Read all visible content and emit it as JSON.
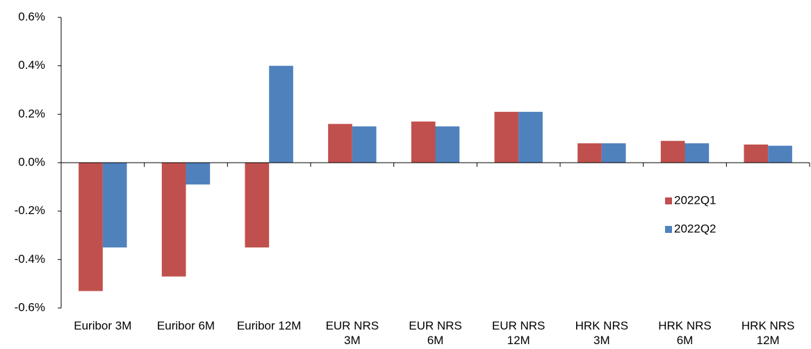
{
  "chart_data": {
    "type": "bar",
    "categories": [
      "Euribor 3M",
      "Euribor 6M",
      "Euribor 12M",
      "EUR NRS\n3M",
      "EUR NRS\n6M",
      "EUR NRS\n12M",
      "HRK NRS\n3M",
      "HRK NRS\n6M",
      "HRK NRS\n12M"
    ],
    "series": [
      {
        "name": "2022Q1",
        "color": "#c0504d",
        "values": [
          -0.53,
          -0.47,
          -0.35,
          0.16,
          0.17,
          0.21,
          0.08,
          0.09,
          0.075
        ]
      },
      {
        "name": "2022Q2",
        "color": "#4f81bd",
        "values": [
          -0.35,
          -0.09,
          0.4,
          0.15,
          0.15,
          0.21,
          0.08,
          0.08,
          0.07
        ]
      }
    ],
    "ylim": [
      -0.6,
      0.6
    ],
    "yticks": [
      {
        "value": -0.6,
        "label": "-0.6%"
      },
      {
        "value": -0.4,
        "label": "-0.4%"
      },
      {
        "value": -0.2,
        "label": "-0.2%"
      },
      {
        "value": 0,
        "label": "0.0%"
      },
      {
        "value": 0.2,
        "label": "0.2%"
      },
      {
        "value": 0.4,
        "label": "0.4%"
      },
      {
        "value": 0.6,
        "label": "0.6%"
      }
    ],
    "legend": "right"
  }
}
